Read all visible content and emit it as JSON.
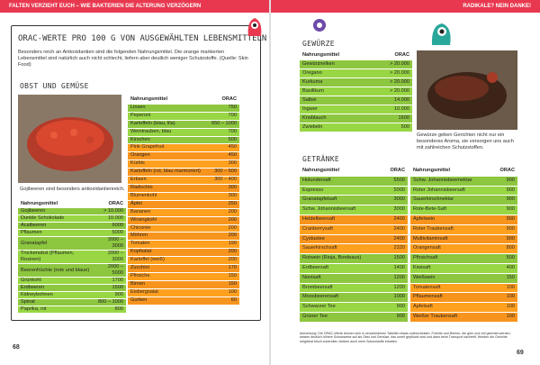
{
  "header": {
    "left": "FALTEN VERZIEHT EUCH – WIE BAKTERIEN DIE ALTERUNG VERZÖGERN",
    "right": "RADIKALE? NEIN DANKE!"
  },
  "left_page": {
    "title": "ORAC-WERTE PRO 100 G VON AUSGEWÄHLTEN LEBENSMITTELN",
    "intro": "Besonders reich an Antioxidantien sind die folgenden Nahrungsmittel. Die orange markierten Lebensmittel sind natürlich auch nicht schlecht, liefern aber deutlich weniger Schutzstoffe. (Quelle: Skin Food)",
    "section": "OBST UND GEMÜSE",
    "caption": "Gojibeeren sind besonders antioxidantienreich.",
    "tables": [
      {
        "columns": [
          "Nahrungsmittel",
          "ORAC"
        ],
        "rows": [
          {
            "cells": [
              "Gojibeeren",
              "> 10.000"
            ],
            "color": "#8dc63f"
          },
          {
            "cells": [
              "Dunkle Schokolade",
              "10.000"
            ],
            "color": "#8dc63f"
          },
          {
            "cells": [
              "Acaibeeren",
              "6000"
            ],
            "color": "#8dc63f"
          },
          {
            "cells": [
              "Pflaumen",
              "5000"
            ],
            "color": "#8dc63f"
          },
          {
            "cells": [
              "Granatapfel",
              "2000 – 3000"
            ],
            "color": "#8dc63f"
          },
          {
            "cells": [
              "Trockenobst (Pflaumen, Rosinen)",
              "2000 – 3000"
            ],
            "color": "#8dc63f"
          },
          {
            "cells": [
              "Beerenfrüchte (rote und blaue)",
              "2000 – 5000"
            ],
            "color": "#8dc63f"
          },
          {
            "cells": [
              "Grünkohl",
              "1700"
            ],
            "color": "#8dc63f"
          },
          {
            "cells": [
              "Erdbeeren",
              "1500"
            ],
            "color": "#8dc63f"
          },
          {
            "cells": [
              "Kidneybohnen",
              "900"
            ],
            "color": "#8dc63f"
          },
          {
            "cells": [
              "Spinat",
              "800 – 1000"
            ],
            "color": "#8dc63f"
          },
          {
            "cells": [
              "Paprika, rot",
              "800"
            ],
            "color": "#8dc63f"
          }
        ]
      },
      {
        "columns": [
          "Nahrungsmittel",
          "ORAC"
        ],
        "rows": [
          {
            "cells": [
              "Linsen",
              "750"
            ],
            "color": "#8dc63f"
          },
          {
            "cells": [
              "Peperoni",
              "700"
            ],
            "color": "#8dc63f"
          },
          {
            "cells": [
              "Kartoffeln (blau, lila)",
              "650 – 1000"
            ],
            "color": "#8dc63f"
          },
          {
            "cells": [
              "Weintrauben, blau",
              "700"
            ],
            "color": "#8dc63f"
          },
          {
            "cells": [
              "Kirschen",
              "500"
            ],
            "color": "#8dc63f"
          },
          {
            "cells": [
              "Pink Grapefruit",
              "450"
            ],
            "color": "#f7941d"
          },
          {
            "cells": [
              "Orangen",
              "450"
            ],
            "color": "#f7941d"
          },
          {
            "cells": [
              "Kürbis",
              "300"
            ],
            "color": "#f7941d"
          },
          {
            "cells": [
              "Kartoffeln (rot, blau marmoriert)",
              "300 – 500"
            ],
            "color": "#f7941d"
          },
          {
            "cells": [
              "Erbsen",
              "300 – 400"
            ],
            "color": "#f7941d"
          },
          {
            "cells": [
              "Radicchio",
              "300"
            ],
            "color": "#f7941d"
          },
          {
            "cells": [
              "Blumenkohl",
              "300"
            ],
            "color": "#f7941d"
          },
          {
            "cells": [
              "Äpfel",
              "250"
            ],
            "color": "#f7941d"
          },
          {
            "cells": [
              "Bananen",
              "200"
            ],
            "color": "#f7941d"
          },
          {
            "cells": [
              "Wirsingkohl",
              "200"
            ],
            "color": "#f7941d"
          },
          {
            "cells": [
              "Chicorée",
              "200"
            ],
            "color": "#f7941d"
          },
          {
            "cells": [
              "Möhren",
              "200"
            ],
            "color": "#f7941d"
          },
          {
            "cells": [
              "Tomaten",
              "190"
            ],
            "color": "#f7941d"
          },
          {
            "cells": [
              "Kopfsalat",
              "200"
            ],
            "color": "#f7941d"
          },
          {
            "cells": [
              "Kartoffel (weiß)",
              "200"
            ],
            "color": "#f7941d"
          },
          {
            "cells": [
              "Zucchini",
              "170"
            ],
            "color": "#f7941d"
          },
          {
            "cells": [
              "Pfirsiche",
              "150"
            ],
            "color": "#f7941d"
          },
          {
            "cells": [
              "Birnen",
              "150"
            ],
            "color": "#f7941d"
          },
          {
            "cells": [
              "Eisbergsalat",
              "100"
            ],
            "color": "#f7941d"
          },
          {
            "cells": [
              "Gurken",
              "60"
            ],
            "color": "#f7941d"
          }
        ]
      }
    ],
    "page_number": "68"
  },
  "right_page": {
    "spices_heading": "GEWÜRZE",
    "spices_caption": "Gewürze geben Gerichten nicht nur ein besonderes Aroma, sie versorgen uns auch mit zahlreichen Schutzstoffen.",
    "drinks_heading": "GETRÄNKE",
    "tables": [
      {
        "columns": [
          "Nahrungsmittel",
          "ORAC"
        ],
        "rows": [
          {
            "cells": [
              "Gewürznelken",
              "> 20.000"
            ],
            "color": "#8dc63f"
          },
          {
            "cells": [
              "Oregano",
              "> 20.000"
            ],
            "color": "#8dc63f"
          },
          {
            "cells": [
              "Kurkuma",
              "> 20.000"
            ],
            "color": "#8dc63f"
          },
          {
            "cells": [
              "Basilikum",
              "> 20.000"
            ],
            "color": "#8dc63f"
          },
          {
            "cells": [
              "Salbei",
              "14.000"
            ],
            "color": "#8dc63f"
          },
          {
            "cells": [
              "Ingwer",
              "10.000"
            ],
            "color": "#8dc63f"
          },
          {
            "cells": [
              "Knoblauch",
              "1600"
            ],
            "color": "#8dc63f"
          },
          {
            "cells": [
              "Zwiebeln",
              "500"
            ],
            "color": "#8dc63f"
          }
        ]
      },
      {
        "columns": [
          "Nahrungsmittel",
          "ORAC"
        ],
        "rows": [
          {
            "cells": [
              "Holundersaft",
              "5500"
            ],
            "color": "#8dc63f"
          },
          {
            "cells": [
              "Espresso",
              "5000"
            ],
            "color": "#8dc63f"
          },
          {
            "cells": [
              "Granatapfelsaft",
              "3000"
            ],
            "color": "#8dc63f"
          },
          {
            "cells": [
              "Schw. Johannisbeersaft",
              "3000"
            ],
            "color": "#8dc63f"
          },
          {
            "cells": [
              "Heidelbeersaft",
              "2400"
            ],
            "color": "#f7941d"
          },
          {
            "cells": [
              "Cranberrysaft",
              "2400"
            ],
            "color": "#f7941d"
          },
          {
            "cells": [
              "Cystustee",
              "2400"
            ],
            "color": "#f7941d"
          },
          {
            "cells": [
              "Sauerkirschsaft",
              "2320"
            ],
            "color": "#f7941d"
          },
          {
            "cells": [
              "Rotwein (Rioja, Bordeaux)",
              "1500"
            ],
            "color": "#8dc63f"
          },
          {
            "cells": [
              "Erdbeersaft",
              "1400"
            ],
            "color": "#8dc63f"
          },
          {
            "cells": [
              "Nonisaft",
              "1200"
            ],
            "color": "#8dc63f"
          },
          {
            "cells": [
              "Brombeersaft",
              "1200"
            ],
            "color": "#8dc63f"
          },
          {
            "cells": [
              "Moosbeerensaft",
              "1000"
            ],
            "color": "#8dc63f"
          },
          {
            "cells": [
              "Schwarzer Tee",
              "900"
            ],
            "color": "#8dc63f"
          },
          {
            "cells": [
              "Grüner Tee",
              "900"
            ],
            "color": "#8dc63f"
          }
        ]
      },
      {
        "columns": [
          "Nahrungsmittel",
          "ORAC"
        ],
        "rows": [
          {
            "cells": [
              "Schw. Johannisbeernektar",
              "900"
            ],
            "color": "#8dc63f"
          },
          {
            "cells": [
              "Roter Johannisbeersaft",
              "900"
            ],
            "color": "#8dc63f"
          },
          {
            "cells": [
              "Sauerkirschnektar",
              "900"
            ],
            "color": "#8dc63f"
          },
          {
            "cells": [
              "Rote-Bete-Saft",
              "900"
            ],
            "color": "#8dc63f"
          },
          {
            "cells": [
              "Apfelwein",
              "900"
            ],
            "color": "#f7941d"
          },
          {
            "cells": [
              "Roter Traubensaft",
              "900"
            ],
            "color": "#f7941d"
          },
          {
            "cells": [
              "Multivitaminsaft",
              "900"
            ],
            "color": "#f7941d"
          },
          {
            "cells": [
              "Orangensaft",
              "800"
            ],
            "color": "#f7941d"
          },
          {
            "cells": [
              "Pfirsichsaft",
              "500"
            ],
            "color": "#8dc63f"
          },
          {
            "cells": [
              "Kiwisaft",
              "400"
            ],
            "color": "#8dc63f"
          },
          {
            "cells": [
              "Weißwein",
              "150"
            ],
            "color": "#8dc63f"
          },
          {
            "cells": [
              "Tomatensaft",
              "100"
            ],
            "color": "#f7941d"
          },
          {
            "cells": [
              "Pflaumensaft",
              "100"
            ],
            "color": "#f7941d"
          },
          {
            "cells": [
              "Apfelsaft",
              "100"
            ],
            "color": "#f7941d"
          },
          {
            "cells": [
              "Weißer Traubensaft",
              "100"
            ],
            "color": "#f7941d"
          }
        ]
      }
    ],
    "footnote": "Anmerkung: Die ORAC-Werte können sich in verschiedenen Tabellen etwas unterscheiden. Früchte und Beeren, die grün und voll geerntet werden, weisen deutlich höhere Schutzwerte auf als Obst und Gemüse, das unreif gepflückt wird und dann beim Transport nachreift. Werden die Gerichte möglichst frisch zubereitet, bleiben auch mehr Schutzstoffe erhalten.",
    "page_number": "69"
  }
}
